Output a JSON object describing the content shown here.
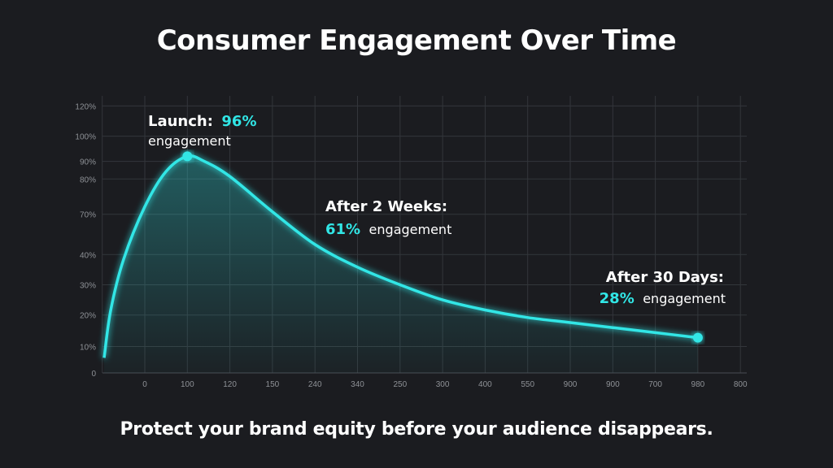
{
  "title": "Consumer Engagement Over Time",
  "footer": "Protect your brand equity before your audience disappears.",
  "colors": {
    "background": "#1b1c20",
    "accent": "#31e6e6",
    "grid": "#33363b",
    "text": "#ffffff",
    "tick": "#8e9196"
  },
  "chart_data": {
    "type": "area",
    "title": "Consumer Engagement Over Time",
    "xlabel": "",
    "ylabel": "",
    "x_tick_labels": [
      "0",
      "100",
      "120",
      "150",
      "240",
      "340",
      "250",
      "300",
      "400",
      "550",
      "900",
      "900",
      "700",
      "980",
      "800"
    ],
    "y_tick_labels": [
      "0",
      "10%",
      "20%",
      "30%",
      "40%",
      "70%",
      "80%",
      "90%",
      "100%",
      "120%"
    ],
    "grid": true,
    "series": [
      {
        "x_index": [
          -1,
          -0.8,
          -0.5,
          0,
          0.5,
          1.0,
          1.4,
          2,
          3,
          4,
          5,
          6,
          7,
          8,
          9,
          10,
          11,
          12,
          13
        ],
        "values": [
          6,
          25,
          45,
          66,
          80,
          86,
          84,
          78,
          64,
          51,
          42,
          35,
          29,
          25,
          22,
          20,
          18,
          16,
          14
        ]
      }
    ],
    "annotations": [
      {
        "label": "Launch:",
        "value": "96%",
        "suffix": "engagement"
      },
      {
        "label": "After 2 Weeks:",
        "value": "61%",
        "suffix": "engagement"
      },
      {
        "label": "After 30 Days:",
        "value": "28%",
        "suffix": "engagement"
      }
    ]
  }
}
